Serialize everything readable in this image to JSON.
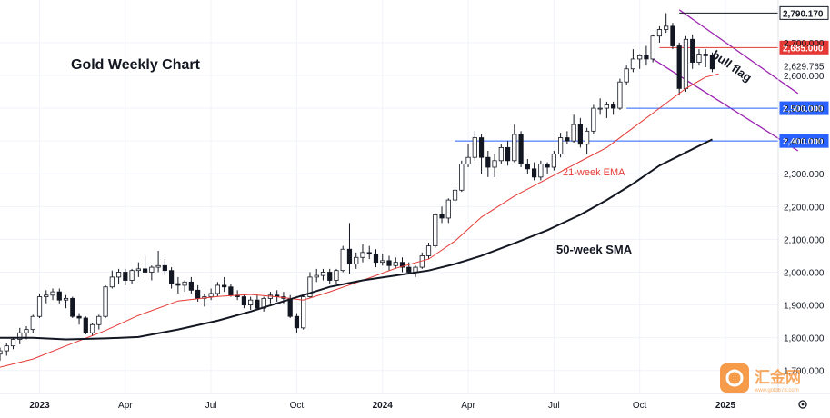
{
  "colors": {
    "up_candle": "#ffffff",
    "down_candle": "#131722",
    "candle_outline": "#131722",
    "ema": "#e53935",
    "sma": "#131722",
    "channel": "#9c27b0",
    "support": "#2962ff",
    "resistance": "#e53935",
    "grid": "#f0f3fa",
    "axis_text": "#131722"
  },
  "chart_data": {
    "type": "candlestick",
    "title": "Gold Weekly Chart",
    "ylim": [
      1630,
      2830
    ],
    "y_ticks": [
      1700,
      1800,
      1900,
      2000,
      2100,
      2200,
      2300,
      2400,
      2500,
      2600,
      2700
    ],
    "y_tick_labels": [
      "1,700.000",
      "1,800.000",
      "1,900.000",
      "2,000.000",
      "2,100.000",
      "2,200.000",
      "2,300.000",
      "2,400.000",
      "2,500.000",
      "2,600.000",
      "2,700.000"
    ],
    "x_range": [
      "2022-11-21",
      "2025-02-24"
    ],
    "x_ticks": [
      {
        "date": "2023-01-02",
        "label": "2023",
        "bold": true
      },
      {
        "date": "2023-04-03",
        "label": "Apr",
        "bold": false
      },
      {
        "date": "2023-07-03",
        "label": "Jul",
        "bold": false
      },
      {
        "date": "2023-10-02",
        "label": "Oct",
        "bold": false
      },
      {
        "date": "2024-01-01",
        "label": "2024",
        "bold": true
      },
      {
        "date": "2024-04-01",
        "label": "Apr",
        "bold": false
      },
      {
        "date": "2024-07-01",
        "label": "Jul",
        "bold": false
      },
      {
        "date": "2024-09-30",
        "label": "Oct",
        "bold": false
      },
      {
        "date": "2024-12-30",
        "label": "2025",
        "bold": true
      }
    ],
    "candles_start": "2022-11-21",
    "candles": [
      [
        1750,
        1770,
        1730,
        1760
      ],
      [
        1760,
        1785,
        1745,
        1775
      ],
      [
        1775,
        1800,
        1765,
        1795
      ],
      [
        1795,
        1830,
        1780,
        1815
      ],
      [
        1815,
        1835,
        1795,
        1825
      ],
      [
        1825,
        1870,
        1815,
        1865
      ],
      [
        1865,
        1935,
        1860,
        1925
      ],
      [
        1925,
        1945,
        1905,
        1930
      ],
      [
        1930,
        1950,
        1915,
        1940
      ],
      [
        1940,
        1950,
        1905,
        1915
      ],
      [
        1915,
        1930,
        1890,
        1920
      ],
      [
        1920,
        1925,
        1860,
        1865
      ],
      [
        1865,
        1875,
        1840,
        1860
      ],
      [
        1860,
        1865,
        1810,
        1815
      ],
      [
        1815,
        1845,
        1805,
        1840
      ],
      [
        1840,
        1870,
        1825,
        1865
      ],
      [
        1865,
        1960,
        1860,
        1955
      ],
      [
        1955,
        2005,
        1950,
        1985
      ],
      [
        1985,
        2010,
        1965,
        2000
      ],
      [
        2000,
        2010,
        1960,
        1975
      ],
      [
        1975,
        2010,
        1965,
        2005
      ],
      [
        2005,
        2030,
        1985,
        2010
      ],
      [
        2010,
        2050,
        1995,
        2000
      ],
      [
        2000,
        2020,
        1975,
        2015
      ],
      [
        2015,
        2065,
        2000,
        2020
      ],
      [
        2020,
        2040,
        1990,
        2005
      ],
      [
        2005,
        2015,
        1950,
        1965
      ],
      [
        1965,
        1985,
        1935,
        1960
      ],
      [
        1960,
        1975,
        1940,
        1970
      ],
      [
        1970,
        1985,
        1935,
        1945
      ],
      [
        1945,
        1960,
        1910,
        1920
      ],
      [
        1920,
        1935,
        1895,
        1925
      ],
      [
        1925,
        1950,
        1915,
        1935
      ],
      [
        1935,
        1970,
        1925,
        1960
      ],
      [
        1960,
        1985,
        1940,
        1955
      ],
      [
        1955,
        1965,
        1925,
        1930
      ],
      [
        1930,
        1945,
        1915,
        1925
      ],
      [
        1925,
        1935,
        1890,
        1900
      ],
      [
        1900,
        1925,
        1885,
        1915
      ],
      [
        1915,
        1930,
        1885,
        1890
      ],
      [
        1890,
        1925,
        1880,
        1920
      ],
      [
        1920,
        1940,
        1905,
        1930
      ],
      [
        1930,
        1945,
        1910,
        1925
      ],
      [
        1925,
        1940,
        1905,
        1920
      ],
      [
        1920,
        1930,
        1860,
        1865
      ],
      [
        1865,
        1875,
        1815,
        1830
      ],
      [
        1830,
        1930,
        1825,
        1925
      ],
      [
        1925,
        2000,
        1920,
        1985
      ],
      [
        1985,
        2010,
        1970,
        1990
      ],
      [
        1990,
        2010,
        1975,
        2000
      ],
      [
        2000,
        2010,
        1965,
        1975
      ],
      [
        1975,
        2010,
        1965,
        2005
      ],
      [
        2005,
        2080,
        2000,
        2070
      ],
      [
        2070,
        2150,
        1995,
        2025
      ],
      [
        2025,
        2060,
        2010,
        2045
      ],
      [
        2045,
        2085,
        2030,
        2060
      ],
      [
        2060,
        2080,
        2040,
        2055
      ],
      [
        2055,
        2070,
        2015,
        2030
      ],
      [
        2030,
        2055,
        2020,
        2035
      ],
      [
        2035,
        2050,
        2005,
        2020
      ],
      [
        2020,
        2045,
        2010,
        2030
      ],
      [
        2030,
        2045,
        2000,
        2015
      ],
      [
        2015,
        2030,
        1995,
        2000
      ],
      [
        2000,
        2020,
        1985,
        2015
      ],
      [
        2015,
        2060,
        2010,
        2050
      ],
      [
        2050,
        2090,
        2040,
        2080
      ],
      [
        2080,
        2180,
        2075,
        2175
      ],
      [
        2175,
        2200,
        2150,
        2165
      ],
      [
        2165,
        2225,
        2150,
        2220
      ],
      [
        2220,
        2260,
        2205,
        2250
      ],
      [
        2250,
        2340,
        2245,
        2330
      ],
      [
        2330,
        2390,
        2320,
        2350
      ],
      [
        2350,
        2430,
        2340,
        2410
      ],
      [
        2410,
        2420,
        2300,
        2350
      ],
      [
        2350,
        2370,
        2290,
        2320
      ],
      [
        2320,
        2360,
        2290,
        2340
      ],
      [
        2340,
        2390,
        2330,
        2380
      ],
      [
        2380,
        2400,
        2325,
        2340
      ],
      [
        2340,
        2450,
        2335,
        2420
      ],
      [
        2420,
        2430,
        2320,
        2330
      ],
      [
        2330,
        2345,
        2300,
        2315
      ],
      [
        2315,
        2335,
        2280,
        2290
      ],
      [
        2290,
        2340,
        2280,
        2330
      ],
      [
        2330,
        2335,
        2300,
        2320
      ],
      [
        2320,
        2370,
        2310,
        2360
      ],
      [
        2360,
        2425,
        2350,
        2410
      ],
      [
        2410,
        2430,
        2390,
        2400
      ],
      [
        2400,
        2480,
        2395,
        2450
      ],
      [
        2450,
        2470,
        2380,
        2390
      ],
      [
        2390,
        2440,
        2360,
        2430
      ],
      [
        2430,
        2510,
        2420,
        2500
      ],
      [
        2500,
        2530,
        2480,
        2500
      ],
      [
        2500,
        2520,
        2470,
        2510
      ],
      [
        2510,
        2520,
        2480,
        2500
      ],
      [
        2500,
        2590,
        2495,
        2580
      ],
      [
        2580,
        2630,
        2570,
        2620
      ],
      [
        2620,
        2680,
        2610,
        2650
      ],
      [
        2650,
        2665,
        2620,
        2660
      ],
      [
        2660,
        2690,
        2630,
        2650
      ],
      [
        2650,
        2725,
        2640,
        2720
      ],
      [
        2720,
        2750,
        2700,
        2740
      ],
      [
        2740,
        2790,
        2730,
        2750
      ],
      [
        2750,
        2760,
        2680,
        2690
      ],
      [
        2690,
        2700,
        2540,
        2560
      ],
      [
        2560,
        2720,
        2550,
        2710
      ],
      [
        2710,
        2725,
        2620,
        2640
      ],
      [
        2640,
        2680,
        2630,
        2665
      ],
      [
        2665,
        2680,
        2625,
        2660
      ],
      [
        2660,
        2670,
        2610,
        2620
      ]
    ],
    "ema_label": "21-week EMA",
    "ema": [
      [
        0,
        1710
      ],
      [
        5,
        1735
      ],
      [
        10,
        1775
      ],
      [
        16,
        1822
      ],
      [
        21,
        1868
      ],
      [
        27,
        1912
      ],
      [
        33,
        1926
      ],
      [
        38,
        1932
      ],
      [
        42,
        1925
      ],
      [
        46,
        1915
      ],
      [
        50,
        1940
      ],
      [
        55,
        1975
      ],
      [
        60,
        2012
      ],
      [
        65,
        2040
      ],
      [
        69,
        2095
      ],
      [
        73,
        2168
      ],
      [
        78,
        2232
      ],
      [
        83,
        2285
      ],
      [
        88,
        2338
      ],
      [
        92,
        2380
      ],
      [
        96,
        2440
      ],
      [
        100,
        2500
      ],
      [
        104,
        2560
      ],
      [
        107,
        2595
      ],
      [
        109,
        2605
      ]
    ],
    "sma_label": "50-week SMA",
    "sma": [
      [
        0,
        1800
      ],
      [
        5,
        1800
      ],
      [
        10,
        1795
      ],
      [
        16,
        1798
      ],
      [
        21,
        1802
      ],
      [
        27,
        1825
      ],
      [
        33,
        1852
      ],
      [
        38,
        1880
      ],
      [
        42,
        1905
      ],
      [
        46,
        1930
      ],
      [
        50,
        1955
      ],
      [
        55,
        1975
      ],
      [
        60,
        1990
      ],
      [
        65,
        2005
      ],
      [
        69,
        2025
      ],
      [
        73,
        2050
      ],
      [
        78,
        2088
      ],
      [
        83,
        2128
      ],
      [
        88,
        2175
      ],
      [
        92,
        2220
      ],
      [
        96,
        2270
      ],
      [
        100,
        2325
      ],
      [
        104,
        2365
      ],
      [
        108,
        2405
      ]
    ],
    "horizontal_lines": [
      {
        "value": 2790.17,
        "label": "2,790.170",
        "style": "tag-dark"
      },
      {
        "value": 2685.0,
        "label": "2,685.000",
        "style": "tag-red"
      },
      {
        "value": 2629.765,
        "label": "2,629.765",
        "style": "plain"
      },
      {
        "value": 2500.0,
        "label": "2,500.000",
        "style": "tag-blue"
      },
      {
        "value": 2400.0,
        "label": "2,400.000",
        "style": "tag-blue"
      }
    ],
    "channel_lines": [
      {
        "x1": 103,
        "y1": 2800,
        "x2": 121,
        "y2": 2545
      },
      {
        "x1": 99,
        "y1": 2650,
        "x2": 121,
        "y2": 2370
      }
    ],
    "annotations": [
      {
        "text": "bull flag"
      },
      {
        "text": "21-week EMA"
      },
      {
        "text": "50-week SMA"
      }
    ]
  },
  "branding": {
    "logo_text": "汇金网",
    "logo_sub": "www.gold678.com"
  }
}
